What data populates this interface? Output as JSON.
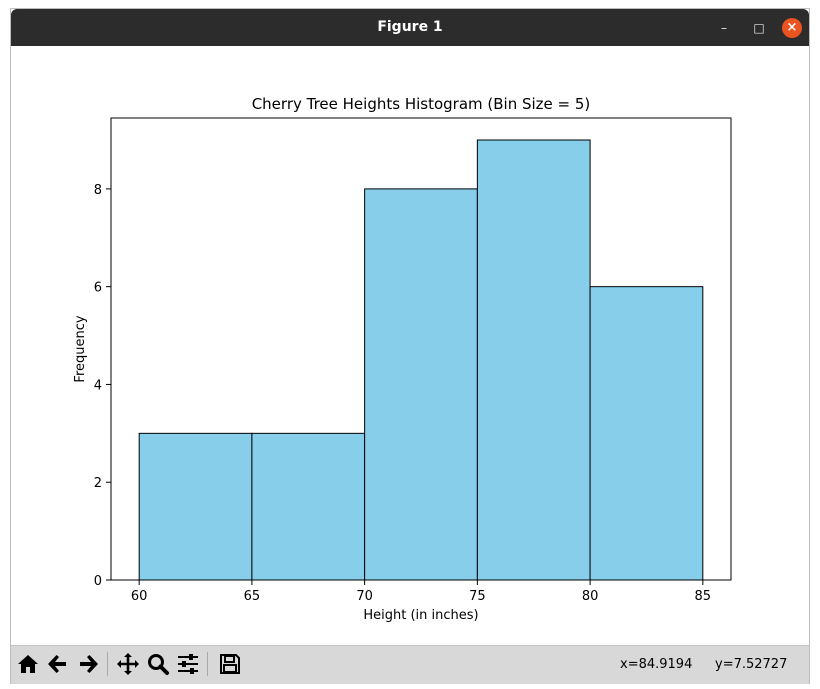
{
  "window": {
    "title": "Figure 1",
    "minimize_glyph": "–",
    "maximize_glyph": "□",
    "close_glyph": "×"
  },
  "toolbar": {
    "tools": [
      {
        "id": "home",
        "icon": "home-icon"
      },
      {
        "id": "back",
        "icon": "arrow-left-icon"
      },
      {
        "id": "forward",
        "icon": "arrow-right-icon"
      },
      {
        "id": "pan",
        "icon": "move-icon"
      },
      {
        "id": "zoom",
        "icon": "magnifier-icon"
      },
      {
        "id": "configure",
        "icon": "sliders-icon"
      },
      {
        "id": "save",
        "icon": "floppy-disk-icon"
      }
    ],
    "coord_x": "x=84.9194",
    "coord_y": "y=7.52727"
  },
  "chart_data": {
    "type": "bar",
    "title": "Cherry Tree Heights Histogram (Bin Size = 5)",
    "xlabel": "Height (in inches)",
    "ylabel": "Frequency",
    "bins": [
      {
        "start": 60,
        "end": 65,
        "count": 3
      },
      {
        "start": 65,
        "end": 70,
        "count": 3
      },
      {
        "start": 70,
        "end": 75,
        "count": 8
      },
      {
        "start": 75,
        "end": 80,
        "count": 9
      },
      {
        "start": 80,
        "end": 85,
        "count": 6
      }
    ],
    "xlim": [
      58.75,
      86.25
    ],
    "ylim": [
      0,
      9.45
    ],
    "xticks": [
      60,
      65,
      70,
      75,
      80,
      85
    ],
    "yticks": [
      0,
      2,
      4,
      6,
      8
    ],
    "bar_color": "#87ceeb",
    "edge_color": "#000000",
    "grid": false
  }
}
